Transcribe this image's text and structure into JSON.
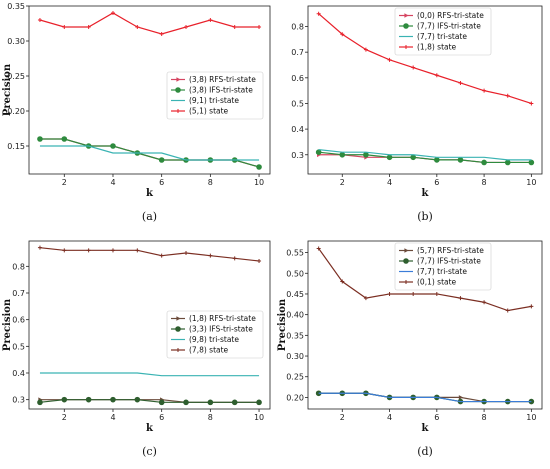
{
  "chart_data": [
    {
      "type": "line",
      "caption": "(a)",
      "xlabel": "k",
      "ylabel": "Precision",
      "x": [
        1,
        2,
        3,
        4,
        5,
        6,
        7,
        8,
        9,
        10
      ],
      "xticks": [
        2,
        4,
        6,
        8,
        10
      ],
      "xlim": [
        0.55,
        10.45
      ],
      "ylim": [
        0.11,
        0.35
      ],
      "yticks": [
        0.15,
        0.2,
        0.25,
        0.3,
        0.35
      ],
      "yticklabels": [
        "0.15",
        "0.20",
        "0.25",
        "0.30",
        "0.35"
      ],
      "legend": "center-right",
      "series": [
        {
          "name": "(3,8) RFS-tri-state",
          "color": "#d64561",
          "marker": "tri",
          "values": [
            0.16,
            0.16,
            0.15,
            0.15,
            0.14,
            0.13,
            0.13,
            0.13,
            0.13,
            0.12
          ]
        },
        {
          "name": "(3,8) IFS-tri-state",
          "color": "#2e8b3e",
          "marker": "dot",
          "values": [
            0.16,
            0.16,
            0.15,
            0.15,
            0.14,
            0.13,
            0.13,
            0.13,
            0.13,
            0.12
          ]
        },
        {
          "name": "(9,1) tri-state",
          "color": "#3ab3b3",
          "marker": "none",
          "values": [
            0.15,
            0.15,
            0.15,
            0.14,
            0.14,
            0.14,
            0.13,
            0.13,
            0.13,
            0.13
          ]
        },
        {
          "name": "(5,1) state",
          "color": "#e8202a",
          "marker": "plus",
          "values": [
            0.33,
            0.32,
            0.32,
            0.34,
            0.32,
            0.31,
            0.32,
            0.33,
            0.32,
            0.32
          ]
        }
      ]
    },
    {
      "type": "line",
      "caption": "(b)",
      "xlabel": "k",
      "ylabel": "",
      "x": [
        1,
        2,
        3,
        4,
        5,
        6,
        7,
        8,
        9,
        10
      ],
      "xticks": [
        2,
        4,
        6,
        8,
        10
      ],
      "xlim": [
        0.55,
        10.45
      ],
      "ylim": [
        0.225,
        0.88
      ],
      "yticks": [
        0.3,
        0.4,
        0.5,
        0.6,
        0.7,
        0.8
      ],
      "yticklabels": [
        "0.3",
        "0.4",
        "0.5",
        "0.6",
        "0.7",
        "0.8"
      ],
      "legend": "top-right",
      "series": [
        {
          "name": "(0,0) RFS-tri-state",
          "color": "#d64561",
          "marker": "tri",
          "values": [
            0.3,
            0.3,
            0.29,
            0.29,
            0.29,
            0.28,
            0.28,
            0.27,
            0.27,
            0.27
          ]
        },
        {
          "name": "(7,7) IFS-tri-state",
          "color": "#2e8b3e",
          "marker": "dot",
          "values": [
            0.31,
            0.3,
            0.3,
            0.29,
            0.29,
            0.28,
            0.28,
            0.27,
            0.27,
            0.27
          ]
        },
        {
          "name": "(7,7) tri-state",
          "color": "#3ab3b3",
          "marker": "none",
          "values": [
            0.32,
            0.31,
            0.31,
            0.3,
            0.3,
            0.29,
            0.29,
            0.29,
            0.28,
            0.28
          ]
        },
        {
          "name": "(1,8) state",
          "color": "#e8202a",
          "marker": "plus",
          "values": [
            0.85,
            0.77,
            0.71,
            0.67,
            0.64,
            0.61,
            0.58,
            0.55,
            0.53,
            0.5
          ]
        }
      ]
    },
    {
      "type": "line",
      "caption": "(c)",
      "xlabel": "k",
      "ylabel": "Precision",
      "x": [
        1,
        2,
        3,
        4,
        5,
        6,
        7,
        8,
        9,
        10
      ],
      "xticks": [
        2,
        4,
        6,
        8,
        10
      ],
      "xlim": [
        0.55,
        10.45
      ],
      "ylim": [
        0.265,
        0.895
      ],
      "yticks": [
        0.3,
        0.4,
        0.5,
        0.6,
        0.7,
        0.8
      ],
      "yticklabels": [
        "0.3",
        "0.4",
        "0.5",
        "0.6",
        "0.7",
        "0.8"
      ],
      "legend": "center-right",
      "series": [
        {
          "name": "(1,8) RFS-tri-state",
          "color": "#6b4b3b",
          "marker": "tri",
          "values": [
            0.3,
            0.3,
            0.3,
            0.3,
            0.3,
            0.3,
            0.29,
            0.29,
            0.29,
            0.29
          ]
        },
        {
          "name": "(3,3) IFS-tri-state",
          "color": "#2e5e2e",
          "marker": "dot",
          "values": [
            0.29,
            0.3,
            0.3,
            0.3,
            0.3,
            0.29,
            0.29,
            0.29,
            0.29,
            0.29
          ]
        },
        {
          "name": "(9,8) tri-state",
          "color": "#3ab3b3",
          "marker": "none",
          "values": [
            0.4,
            0.4,
            0.4,
            0.4,
            0.4,
            0.39,
            0.39,
            0.39,
            0.39,
            0.39
          ]
        },
        {
          "name": "(7,8) state",
          "color": "#7b2e22",
          "marker": "plus",
          "values": [
            0.87,
            0.86,
            0.86,
            0.86,
            0.86,
            0.84,
            0.85,
            0.84,
            0.83,
            0.82
          ]
        }
      ]
    },
    {
      "type": "line",
      "caption": "(d)",
      "xlabel": "k",
      "ylabel": "Precision",
      "x": [
        1,
        2,
        3,
        4,
        5,
        6,
        7,
        8,
        9,
        10
      ],
      "xticks": [
        2,
        4,
        6,
        8,
        10
      ],
      "xlim": [
        0.55,
        10.45
      ],
      "ylim": [
        0.172,
        0.578
      ],
      "yticks": [
        0.2,
        0.25,
        0.3,
        0.35,
        0.4,
        0.45,
        0.5,
        0.55
      ],
      "yticklabels": [
        "0.20",
        "0.25",
        "0.30",
        "0.35",
        "0.40",
        "0.45",
        "0.50",
        "0.55"
      ],
      "legend": "top-right",
      "series": [
        {
          "name": "(5,7) RFS-tri-state",
          "color": "#6b4b3b",
          "marker": "tri",
          "values": [
            0.21,
            0.21,
            0.21,
            0.2,
            0.2,
            0.2,
            0.2,
            0.19,
            0.19,
            0.19
          ]
        },
        {
          "name": "(7,7) IFS-tri-state",
          "color": "#2e5e2e",
          "marker": "dot",
          "values": [
            0.21,
            0.21,
            0.21,
            0.2,
            0.2,
            0.2,
            0.19,
            0.19,
            0.19,
            0.19
          ]
        },
        {
          "name": "(7,7) tri-state",
          "color": "#3b7dd8",
          "marker": "none",
          "values": [
            0.21,
            0.21,
            0.21,
            0.2,
            0.2,
            0.2,
            0.19,
            0.19,
            0.19,
            0.19
          ]
        },
        {
          "name": "(0,1) state",
          "color": "#7b2e22",
          "marker": "plus",
          "values": [
            0.56,
            0.48,
            0.44,
            0.45,
            0.45,
            0.45,
            0.44,
            0.43,
            0.41,
            0.42
          ]
        }
      ]
    }
  ]
}
